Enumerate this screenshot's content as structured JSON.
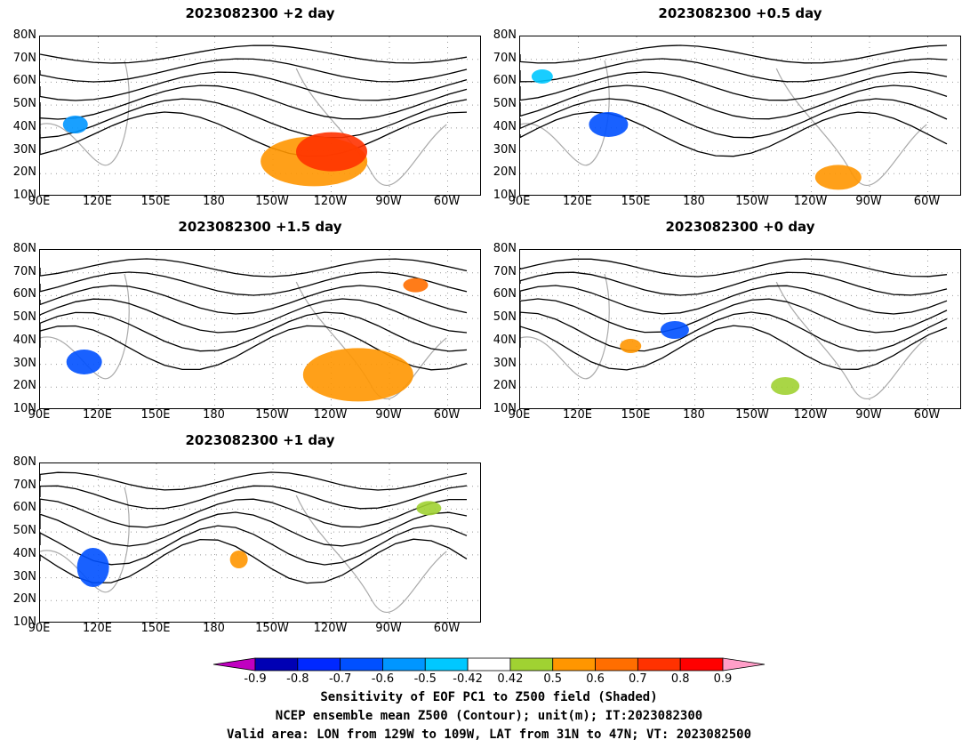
{
  "panels": [
    {
      "title": "2023082300 +2 day"
    },
    {
      "title": "2023082300 +0.5 day"
    },
    {
      "title": "2023082300 +1.5 day"
    },
    {
      "title": "2023082300 +0 day"
    },
    {
      "title": "2023082300 +1 day"
    }
  ],
  "lat_ticks": [
    "80N",
    "70N",
    "60N",
    "50N",
    "40N",
    "30N",
    "20N",
    "10N"
  ],
  "lon_ticks": [
    "90E",
    "120E",
    "150E",
    "180",
    "150W",
    "120W",
    "90W",
    "60W"
  ],
  "contour_levels": [
    "5400",
    "5520",
    "5640",
    "5760",
    "5880"
  ],
  "colorbar": {
    "labels": [
      "-0.9",
      "-0.8",
      "-0.7",
      "-0.6",
      "-0.5",
      "-0.42",
      "0.42",
      "0.5",
      "0.6",
      "0.7",
      "0.8",
      "0.9"
    ],
    "colors": [
      "#c000c0",
      "#0000b4",
      "#0028ff",
      "#0050ff",
      "#0096ff",
      "#00c8ff",
      "#ffffff",
      "#a0d232",
      "#ff9600",
      "#ff6e00",
      "#ff3200",
      "#ff0000",
      "#ff9ec8"
    ]
  },
  "caption": {
    "line1": "Sensitivity of EOF PC1 to Z500 field (Shaded)",
    "line2": "NCEP ensemble mean Z500 (Contour); unit(m); IT:2023082300",
    "line3": "Valid area: LON from 129W to 109W, LAT from 31N to 47N; VT: 2023082500"
  }
}
